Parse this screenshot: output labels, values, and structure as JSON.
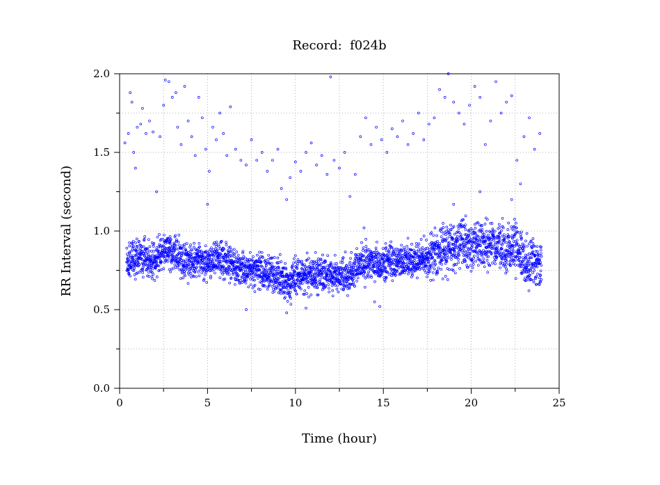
{
  "chart_data": {
    "type": "scatter",
    "title": "Record:  f024b",
    "xlabel": "Time (hour)",
    "ylabel": "RR Interval (second)",
    "xlim": [
      0,
      25
    ],
    "ylim": [
      0,
      2.0
    ],
    "x_ticks": [
      0,
      5,
      10,
      15,
      20,
      25
    ],
    "x_tick_labels": [
      "0",
      "5",
      "10",
      "15",
      "20",
      "25"
    ],
    "y_ticks": [
      0,
      0.5,
      1.0,
      1.5,
      2.0
    ],
    "y_tick_labels": [
      "0.0",
      "0.5",
      "1.0",
      "1.5",
      "2.0"
    ],
    "x_grid": [
      0,
      2.5,
      5,
      7.5,
      10,
      12.5,
      15,
      17.5,
      20,
      22.5,
      25
    ],
    "y_grid": [
      0,
      0.25,
      0.5,
      0.75,
      1.0,
      1.25,
      1.5,
      1.75,
      2.0
    ],
    "grid": true,
    "marker_color": "#0000ff",
    "series": [
      {
        "main_band": [
          [
            0.4,
            0.8
          ],
          [
            1.0,
            0.84
          ],
          [
            1.5,
            0.82
          ],
          [
            2.0,
            0.8
          ],
          [
            2.5,
            0.88
          ],
          [
            3.0,
            0.86
          ],
          [
            3.5,
            0.82
          ],
          [
            4.0,
            0.8
          ],
          [
            4.5,
            0.82
          ],
          [
            5.0,
            0.8
          ],
          [
            5.5,
            0.84
          ],
          [
            6.0,
            0.8
          ],
          [
            6.5,
            0.79
          ],
          [
            7.0,
            0.77
          ],
          [
            7.5,
            0.76
          ],
          [
            8.0,
            0.74
          ],
          [
            8.5,
            0.73
          ],
          [
            9.0,
            0.72
          ],
          [
            9.5,
            0.67
          ],
          [
            10.0,
            0.71
          ],
          [
            10.5,
            0.72
          ],
          [
            11.0,
            0.73
          ],
          [
            11.5,
            0.72
          ],
          [
            12.0,
            0.71
          ],
          [
            12.5,
            0.72
          ],
          [
            13.0,
            0.72
          ],
          [
            13.5,
            0.78
          ],
          [
            14.0,
            0.79
          ],
          [
            14.5,
            0.8
          ],
          [
            15.0,
            0.8
          ],
          [
            15.5,
            0.81
          ],
          [
            16.0,
            0.81
          ],
          [
            16.5,
            0.8
          ],
          [
            17.0,
            0.8
          ],
          [
            17.5,
            0.83
          ],
          [
            18.0,
            0.86
          ],
          [
            18.5,
            0.9
          ],
          [
            19.0,
            0.9
          ],
          [
            19.5,
            0.92
          ],
          [
            20.0,
            0.91
          ],
          [
            20.5,
            0.92
          ],
          [
            21.0,
            0.9
          ],
          [
            21.5,
            0.9
          ],
          [
            22.0,
            0.87
          ],
          [
            22.5,
            0.9
          ],
          [
            23.0,
            0.82
          ],
          [
            23.5,
            0.79
          ],
          [
            24.0,
            0.8
          ]
        ],
        "outliers_upper": [
          [
            0.3,
            1.56
          ],
          [
            0.5,
            1.62
          ],
          [
            0.6,
            1.88
          ],
          [
            0.7,
            1.82
          ],
          [
            0.8,
            1.5
          ],
          [
            0.9,
            1.4
          ],
          [
            1.0,
            1.66
          ],
          [
            1.2,
            1.68
          ],
          [
            1.3,
            1.78
          ],
          [
            1.5,
            1.62
          ],
          [
            1.7,
            1.7
          ],
          [
            1.9,
            1.63
          ],
          [
            2.1,
            1.25
          ],
          [
            2.3,
            1.6
          ],
          [
            2.5,
            1.8
          ],
          [
            2.6,
            1.96
          ],
          [
            2.8,
            1.95
          ],
          [
            3.0,
            1.85
          ],
          [
            3.2,
            1.88
          ],
          [
            3.3,
            1.66
          ],
          [
            3.5,
            1.55
          ],
          [
            3.7,
            1.92
          ],
          [
            3.9,
            1.7
          ],
          [
            4.1,
            1.6
          ],
          [
            4.3,
            1.48
          ],
          [
            4.5,
            1.85
          ],
          [
            4.7,
            1.72
          ],
          [
            4.9,
            1.52
          ],
          [
            5.1,
            1.38
          ],
          [
            5.3,
            1.66
          ],
          [
            5.5,
            1.58
          ],
          [
            5.7,
            1.75
          ],
          [
            5.9,
            1.62
          ],
          [
            6.1,
            1.48
          ],
          [
            6.3,
            1.79
          ],
          [
            6.6,
            1.52
          ],
          [
            6.9,
            1.45
          ],
          [
            7.2,
            1.42
          ],
          [
            7.5,
            1.58
          ],
          [
            7.8,
            1.45
          ],
          [
            8.1,
            1.5
          ],
          [
            8.4,
            1.38
          ],
          [
            8.7,
            1.45
          ],
          [
            9.0,
            1.52
          ],
          [
            9.2,
            1.27
          ],
          [
            9.5,
            1.2
          ],
          [
            9.7,
            1.34
          ],
          [
            10.0,
            1.44
          ],
          [
            10.3,
            1.38
          ],
          [
            10.6,
            1.5
          ],
          [
            10.9,
            1.56
          ],
          [
            11.2,
            1.42
          ],
          [
            11.5,
            1.48
          ],
          [
            11.8,
            1.36
          ],
          [
            12.0,
            1.98
          ],
          [
            12.2,
            1.45
          ],
          [
            12.5,
            1.4
          ],
          [
            12.8,
            1.5
          ],
          [
            13.1,
            1.22
          ],
          [
            13.4,
            1.36
          ],
          [
            13.7,
            1.6
          ],
          [
            14.0,
            1.72
          ],
          [
            14.3,
            1.55
          ],
          [
            14.6,
            1.66
          ],
          [
            14.9,
            1.58
          ],
          [
            15.2,
            1.5
          ],
          [
            15.5,
            1.65
          ],
          [
            15.8,
            1.6
          ],
          [
            16.1,
            1.7
          ],
          [
            16.4,
            1.55
          ],
          [
            16.7,
            1.62
          ],
          [
            17.0,
            1.75
          ],
          [
            17.3,
            1.58
          ],
          [
            17.6,
            1.68
          ],
          [
            17.9,
            1.72
          ],
          [
            18.2,
            1.9
          ],
          [
            18.5,
            1.85
          ],
          [
            18.7,
            2.0
          ],
          [
            19.0,
            1.82
          ],
          [
            19.3,
            1.75
          ],
          [
            19.6,
            1.68
          ],
          [
            19.9,
            1.8
          ],
          [
            20.2,
            1.92
          ],
          [
            20.5,
            1.85
          ],
          [
            20.8,
            1.55
          ],
          [
            21.1,
            1.7
          ],
          [
            21.4,
            1.95
          ],
          [
            21.7,
            1.75
          ],
          [
            22.0,
            1.82
          ],
          [
            22.3,
            1.86
          ],
          [
            22.6,
            1.45
          ],
          [
            22.8,
            1.3
          ],
          [
            23.0,
            1.6
          ],
          [
            23.3,
            1.72
          ],
          [
            23.6,
            1.52
          ],
          [
            23.9,
            1.62
          ]
        ],
        "outliers_lower": [
          [
            7.2,
            0.5
          ],
          [
            9.5,
            0.48
          ],
          [
            10.6,
            0.51
          ],
          [
            14.5,
            0.55
          ],
          [
            14.8,
            0.52
          ],
          [
            5.0,
            1.17
          ],
          [
            20.5,
            1.25
          ],
          [
            22.3,
            1.2
          ],
          [
            19.0,
            1.17
          ],
          [
            13.9,
            1.02
          ]
        ]
      }
    ]
  }
}
